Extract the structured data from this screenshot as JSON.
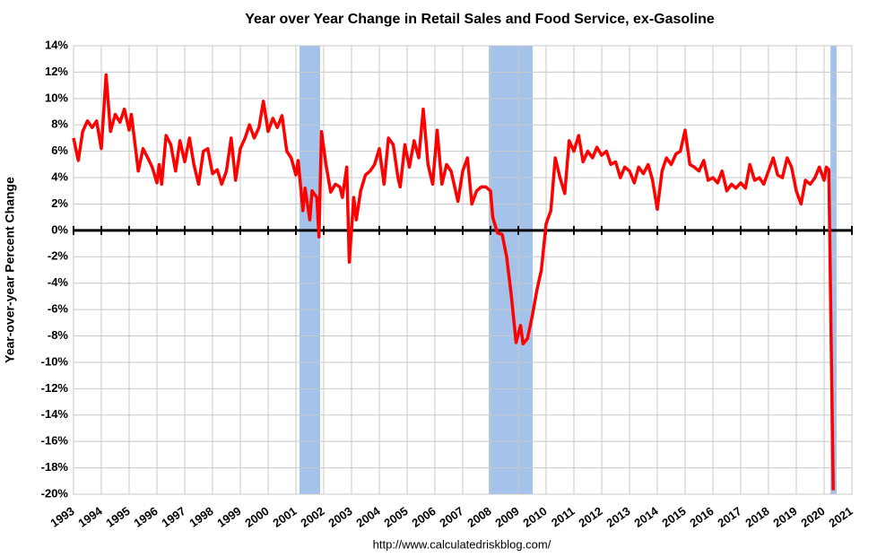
{
  "chart_data": {
    "type": "line",
    "title": "Year over Year Change in Retail Sales and Food Service, ex-Gasoline",
    "y_label": "Year-over-year Percent Change",
    "source": "http://www.calculatedriskblog.com/",
    "xlim": [
      1993,
      2021
    ],
    "xticks": [
      1993,
      1994,
      1995,
      1996,
      1997,
      1998,
      1999,
      2000,
      2001,
      2002,
      2003,
      2004,
      2005,
      2006,
      2007,
      2008,
      2009,
      2010,
      2011,
      2012,
      2013,
      2014,
      2015,
      2016,
      2017,
      2018,
      2019,
      2020,
      2021
    ],
    "ylim": [
      -20,
      14
    ],
    "yticks": [
      {
        "value": 14,
        "label": "14%"
      },
      {
        "value": 12,
        "label": "12%"
      },
      {
        "value": 10,
        "label": "10%"
      },
      {
        "value": 8,
        "label": "8%"
      },
      {
        "value": 6,
        "label": "6%"
      },
      {
        "value": 4,
        "label": "4%"
      },
      {
        "value": 2,
        "label": "2%"
      },
      {
        "value": 0,
        "label": "0%"
      },
      {
        "value": -2,
        "label": "-2%"
      },
      {
        "value": -4,
        "label": "-4%"
      },
      {
        "value": -6,
        "label": "-6%"
      },
      {
        "value": -8,
        "label": "-8%"
      },
      {
        "value": -10,
        "label": "-10%"
      },
      {
        "value": -12,
        "label": "-12%"
      },
      {
        "value": -14,
        "label": "-14%"
      },
      {
        "value": -16,
        "label": "-16%"
      },
      {
        "value": -18,
        "label": "-18%"
      },
      {
        "value": -20,
        "label": "-20%"
      }
    ],
    "grid": true,
    "recessions": [
      [
        2001.13,
        2001.87
      ],
      [
        2007.94,
        2009.52
      ],
      [
        2020.23,
        2020.45
      ]
    ],
    "recession_color": "#a4c2ea",
    "x": [
      1993.0,
      1993.17,
      1993.33,
      1993.5,
      1993.67,
      1993.83,
      1994.0,
      1994.17,
      1994.33,
      1994.5,
      1994.67,
      1994.83,
      1995.0,
      1995.08,
      1995.33,
      1995.5,
      1995.67,
      1995.83,
      1996.0,
      1996.08,
      1996.17,
      1996.33,
      1996.5,
      1996.67,
      1996.83,
      1997.0,
      1997.17,
      1997.33,
      1997.5,
      1997.67,
      1997.83,
      1998.0,
      1998.17,
      1998.33,
      1998.5,
      1998.67,
      1998.83,
      1999.0,
      1999.17,
      1999.33,
      1999.5,
      1999.67,
      1999.83,
      2000.0,
      2000.17,
      2000.33,
      2000.5,
      2000.67,
      2000.83,
      2001.0,
      2001.08,
      2001.25,
      2001.33,
      2001.5,
      2001.58,
      2001.75,
      2001.83,
      2001.92,
      2002.08,
      2002.25,
      2002.42,
      2002.58,
      2002.67,
      2002.83,
      2002.92,
      2003.08,
      2003.17,
      2003.33,
      2003.5,
      2003.67,
      2003.83,
      2004.0,
      2004.17,
      2004.33,
      2004.5,
      2004.67,
      2004.75,
      2004.92,
      2005.08,
      2005.25,
      2005.42,
      2005.58,
      2005.75,
      2005.92,
      2006.08,
      2006.25,
      2006.42,
      2006.58,
      2006.83,
      2007.0,
      2007.17,
      2007.33,
      2007.5,
      2007.67,
      2007.83,
      2008.0,
      2008.08,
      2008.25,
      2008.42,
      2008.58,
      2008.75,
      2008.92,
      2009.08,
      2009.17,
      2009.33,
      2009.5,
      2009.67,
      2009.83,
      2010.0,
      2010.17,
      2010.33,
      2010.5,
      2010.67,
      2010.83,
      2011.0,
      2011.17,
      2011.33,
      2011.5,
      2011.67,
      2011.83,
      2012.0,
      2012.17,
      2012.33,
      2012.5,
      2012.67,
      2012.83,
      2013.0,
      2013.17,
      2013.33,
      2013.5,
      2013.67,
      2013.83,
      2014.0,
      2014.17,
      2014.33,
      2014.5,
      2014.67,
      2014.83,
      2015.0,
      2015.17,
      2015.33,
      2015.5,
      2015.67,
      2015.83,
      2016.0,
      2016.17,
      2016.33,
      2016.5,
      2016.67,
      2016.83,
      2017.0,
      2017.17,
      2017.33,
      2017.5,
      2017.67,
      2017.83,
      2018.0,
      2018.17,
      2018.33,
      2018.5,
      2018.67,
      2018.83,
      2019.0,
      2019.17,
      2019.33,
      2019.5,
      2019.67,
      2019.83,
      2020.0,
      2020.08,
      2020.17,
      2020.25,
      2020.33
    ],
    "series": [
      {
        "color": "#ff0000",
        "values": [
          7.0,
          5.3,
          7.5,
          8.3,
          7.8,
          8.3,
          6.2,
          11.8,
          7.5,
          8.8,
          8.2,
          9.2,
          7.6,
          8.8,
          4.5,
          6.2,
          5.5,
          4.8,
          3.6,
          5.0,
          3.5,
          7.2,
          6.5,
          4.5,
          6.8,
          5.2,
          7.0,
          5.0,
          3.5,
          6.0,
          6.2,
          4.3,
          4.6,
          3.5,
          4.5,
          7.0,
          3.8,
          6.2,
          7.0,
          8.0,
          7.0,
          7.8,
          9.8,
          7.5,
          8.5,
          7.8,
          8.7,
          6.0,
          5.5,
          4.2,
          5.3,
          1.5,
          3.2,
          0.8,
          3.0,
          2.5,
          -0.5,
          7.5,
          5.0,
          2.9,
          3.5,
          3.3,
          2.5,
          4.8,
          -2.4,
          2.5,
          0.8,
          3.0,
          4.2,
          4.5,
          5.0,
          6.2,
          3.5,
          7.0,
          6.5,
          4.0,
          3.3,
          6.5,
          4.8,
          6.8,
          5.5,
          9.2,
          5.0,
          3.5,
          7.6,
          3.5,
          5.0,
          4.5,
          2.2,
          4.5,
          5.5,
          2.0,
          3.0,
          3.3,
          3.3,
          3.0,
          1.0,
          -0.2,
          -0.3,
          -2.0,
          -5.0,
          -8.5,
          -7.2,
          -8.6,
          -8.2,
          -6.5,
          -4.5,
          -3.0,
          0.5,
          1.5,
          5.5,
          4.0,
          2.8,
          6.8,
          6.0,
          7.2,
          5.2,
          6.0,
          5.5,
          6.3,
          5.7,
          6.0,
          5.0,
          5.2,
          4.0,
          4.8,
          4.5,
          3.6,
          4.8,
          4.3,
          5.0,
          3.8,
          1.6,
          4.5,
          5.5,
          5.0,
          5.8,
          6.0,
          7.6,
          5.0,
          4.8,
          4.5,
          5.3,
          3.8,
          4.0,
          3.6,
          4.5,
          3.0,
          3.5,
          3.2,
          3.6,
          3.2,
          5.0,
          3.8,
          4.0,
          3.5,
          4.5,
          5.5,
          4.2,
          4.0,
          5.5,
          4.8,
          3.0,
          2.0,
          3.8,
          3.5,
          4.0,
          4.8,
          3.8,
          4.8,
          4.6,
          -8.0,
          -19.7
        ]
      }
    ]
  }
}
